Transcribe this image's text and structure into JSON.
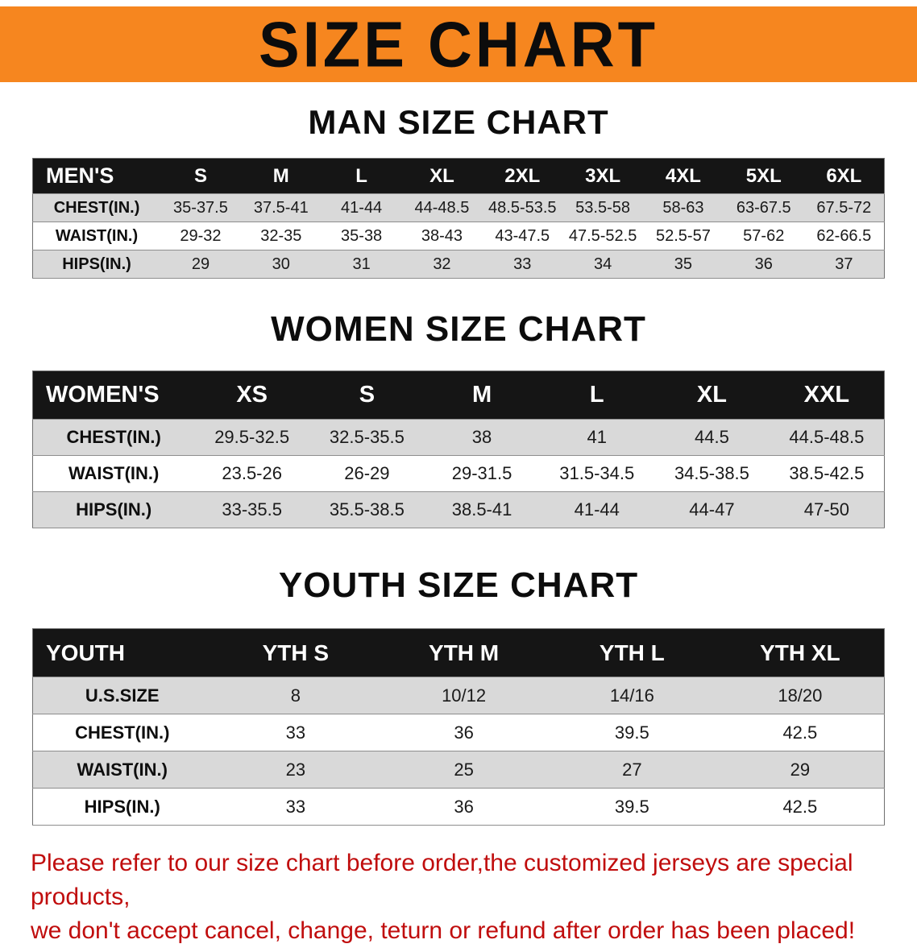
{
  "banner": {
    "title": "SIZE CHART"
  },
  "colors": {
    "banner_bg": "#f6861f",
    "header_bg": "#151515",
    "row_alt_bg": "#d9d9d9",
    "note_color": "#c00d0d"
  },
  "men": {
    "heading": "MAN SIZE CHART",
    "table": {
      "header": [
        "MEN'S",
        "S",
        "M",
        "L",
        "XL",
        "2XL",
        "3XL",
        "4XL",
        "5XL",
        "6XL"
      ],
      "rows": [
        [
          "CHEST(IN.)",
          "35-37.5",
          "37.5-41",
          "41-44",
          "44-48.5",
          "48.5-53.5",
          "53.5-58",
          "58-63",
          "63-67.5",
          "67.5-72"
        ],
        [
          "WAIST(IN.)",
          "29-32",
          "32-35",
          "35-38",
          "38-43",
          "43-47.5",
          "47.5-52.5",
          "52.5-57",
          "57-62",
          "62-66.5"
        ],
        [
          "HIPS(IN.)",
          "29",
          "30",
          "31",
          "32",
          "33",
          "34",
          "35",
          "36",
          "37"
        ]
      ]
    }
  },
  "women": {
    "heading": "WOMEN SIZE CHART",
    "table": {
      "header": [
        "WOMEN'S",
        "XS",
        "S",
        "M",
        "L",
        "XL",
        "XXL"
      ],
      "rows": [
        [
          "CHEST(IN.)",
          "29.5-32.5",
          "32.5-35.5",
          "38",
          "41",
          "44.5",
          "44.5-48.5"
        ],
        [
          "WAIST(IN.)",
          "23.5-26",
          "26-29",
          "29-31.5",
          "31.5-34.5",
          "34.5-38.5",
          "38.5-42.5"
        ],
        [
          "HIPS(IN.)",
          "33-35.5",
          "35.5-38.5",
          "38.5-41",
          "41-44",
          "44-47",
          "47-50"
        ]
      ]
    }
  },
  "youth": {
    "heading": "YOUTH SIZE CHART",
    "table": {
      "header": [
        "YOUTH",
        "YTH S",
        "YTH M",
        "YTH L",
        "YTH XL"
      ],
      "rows": [
        [
          "U.S.SIZE",
          "8",
          "10/12",
          "14/16",
          "18/20"
        ],
        [
          "CHEST(IN.)",
          "33",
          "36",
          "39.5",
          "42.5"
        ],
        [
          "WAIST(IN.)",
          "23",
          "25",
          "27",
          "29"
        ],
        [
          "HIPS(IN.)",
          "33",
          "36",
          "39.5",
          "42.5"
        ]
      ]
    }
  },
  "note": {
    "line1": "Please refer to our size chart before order,the customized jerseys are special products,",
    "line2": "we don't accept cancel, change, teturn or refund after order has been placed!"
  }
}
